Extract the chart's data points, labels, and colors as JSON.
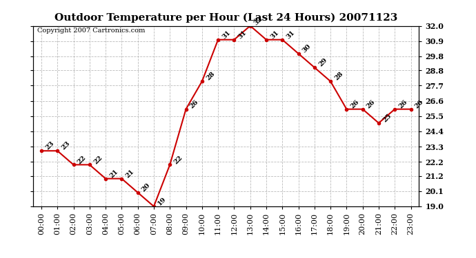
{
  "title": "Outdoor Temperature per Hour (Last 24 Hours) 20071123",
  "copyright": "Copyright 2007 Cartronics.com",
  "hours": [
    "00:00",
    "01:00",
    "02:00",
    "03:00",
    "04:00",
    "05:00",
    "06:00",
    "07:00",
    "08:00",
    "09:00",
    "10:00",
    "11:00",
    "12:00",
    "13:00",
    "14:00",
    "15:00",
    "16:00",
    "17:00",
    "18:00",
    "19:00",
    "20:00",
    "21:00",
    "22:00",
    "23:00"
  ],
  "values": [
    23,
    23,
    22,
    22,
    21,
    21,
    20,
    19,
    22,
    26,
    28,
    31,
    31,
    32,
    31,
    31,
    30,
    29,
    28,
    26,
    26,
    25,
    26,
    26
  ],
  "ylim": [
    19.0,
    32.0
  ],
  "yticks": [
    19.0,
    20.1,
    21.2,
    22.2,
    23.3,
    24.4,
    25.5,
    26.6,
    27.7,
    28.8,
    29.8,
    30.9,
    32.0
  ],
  "line_color": "#cc0000",
  "marker_color": "#cc0000",
  "bg_color": "#ffffff",
  "grid_color": "#bbbbbb",
  "title_fontsize": 11,
  "copyright_fontsize": 7,
  "tick_fontsize": 8
}
